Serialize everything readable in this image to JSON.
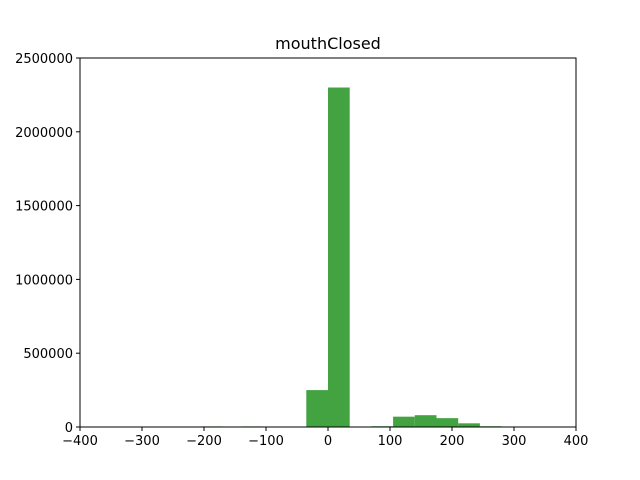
{
  "chart_data": {
    "type": "bar",
    "title": "mouthClosed",
    "xlabel": "",
    "ylabel": "",
    "xlim": [
      -400,
      400
    ],
    "ylim": [
      0,
      2500000
    ],
    "xticks": [
      -400,
      -300,
      -200,
      -100,
      0,
      100,
      200,
      300,
      400
    ],
    "xtick_labels": [
      "−400",
      "−300",
      "−200",
      "−100",
      "0",
      "100",
      "200",
      "300",
      "400"
    ],
    "yticks": [
      0,
      500000,
      1000000,
      1500000,
      2000000,
      2500000
    ],
    "ytick_labels": [
      "0",
      "500000",
      "1000000",
      "1500000",
      "2000000",
      "2500000"
    ],
    "bar_color": "#43a340",
    "grid": false,
    "bins": [
      {
        "x0": -240,
        "x1": -205,
        "value": 3000
      },
      {
        "x0": -205,
        "x1": -170,
        "value": 4000
      },
      {
        "x0": -140,
        "x1": -105,
        "value": 4000
      },
      {
        "x0": -35,
        "x1": 0,
        "value": 250000
      },
      {
        "x0": 0,
        "x1": 35,
        "value": 2300000
      },
      {
        "x0": 70,
        "x1": 105,
        "value": 5000
      },
      {
        "x0": 105,
        "x1": 140,
        "value": 70000
      },
      {
        "x0": 140,
        "x1": 175,
        "value": 80000
      },
      {
        "x0": 175,
        "x1": 210,
        "value": 60000
      },
      {
        "x0": 210,
        "x1": 245,
        "value": 25000
      },
      {
        "x0": 245,
        "x1": 280,
        "value": 5000
      }
    ]
  }
}
